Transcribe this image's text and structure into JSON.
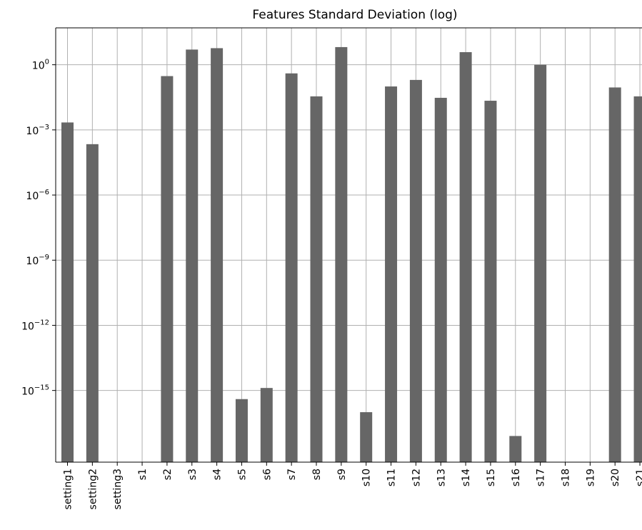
{
  "chart_data": {
    "type": "bar",
    "title": "Features Standard Deviation (log)",
    "xlabel": "",
    "ylabel": "",
    "yscale": "log",
    "ylim": [
      5e-19,
      50.0
    ],
    "grid": true,
    "bar_color": "#666666",
    "grid_color": "#b0b0b0",
    "categories": [
      "setting1",
      "setting2",
      "setting3",
      "s1",
      "s2",
      "s3",
      "s4",
      "s5",
      "s6",
      "s7",
      "s8",
      "s9",
      "s10",
      "s11",
      "s12",
      "s13",
      "s14",
      "s15",
      "s16",
      "s17",
      "s18",
      "s19",
      "s20",
      "s21"
    ],
    "values": [
      0.0022,
      0.00022,
      null,
      null,
      0.3,
      5.0,
      5.8,
      4e-16,
      1.3e-15,
      0.4,
      0.035,
      6.5,
      1e-16,
      0.1,
      0.2,
      0.03,
      3.8,
      0.022,
      8e-18,
      1.0,
      null,
      null,
      0.09,
      0.035
    ],
    "y_ticks": [
      {
        "value": 1.0,
        "base": "10",
        "exp": "0"
      },
      {
        "value": 0.001,
        "base": "10",
        "exp": "−3"
      },
      {
        "value": 1e-06,
        "base": "10",
        "exp": "−6"
      },
      {
        "value": 1e-09,
        "base": "10",
        "exp": "−9"
      },
      {
        "value": 1e-12,
        "base": "10",
        "exp": "−12"
      },
      {
        "value": 1e-15,
        "base": "10",
        "exp": "−15"
      }
    ]
  }
}
